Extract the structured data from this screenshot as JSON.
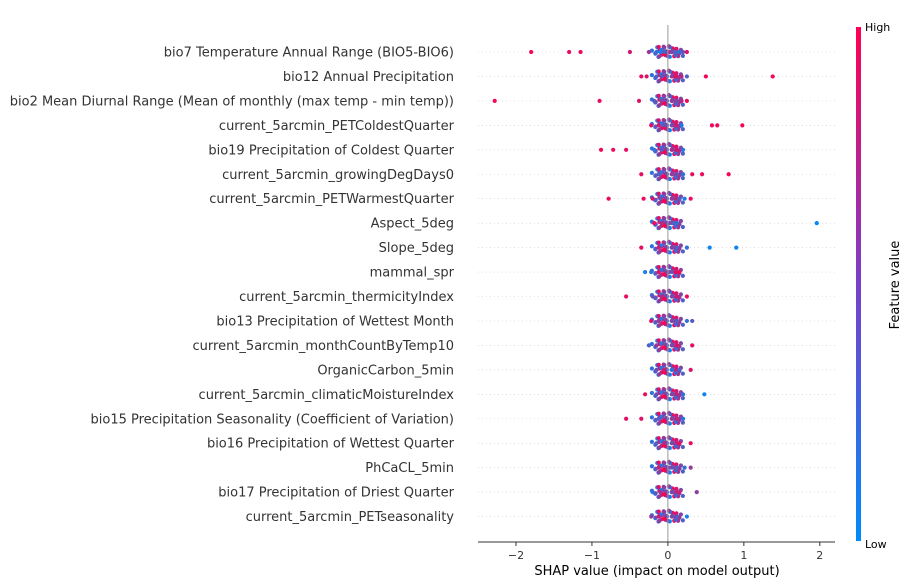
{
  "chart_data": {
    "type": "scatter",
    "subtype": "shap-beeswarm",
    "xlabel": "SHAP value (impact on model output)",
    "xlim": [
      -2.5,
      2.2
    ],
    "xticks": [
      -2,
      -1,
      0,
      1,
      2
    ],
    "xtick_labels": [
      "−2",
      "−1",
      "0",
      "1",
      "2"
    ],
    "zero_line": true,
    "colorbar": {
      "title": "Feature value",
      "high_label": "High",
      "low_label": "Low",
      "high_color": "#ff0052",
      "low_color": "#008bfb"
    },
    "features": [
      {
        "name": "bio7 Temperature Annual Range (BIO5-BIO6)",
        "points": [
          [
            -1.8,
            0.95
          ],
          [
            -1.3,
            0.9
          ],
          [
            -1.15,
            0.92
          ],
          [
            -0.5,
            0.8
          ],
          [
            -0.25,
            0.6
          ],
          [
            -0.15,
            0.2
          ],
          [
            -0.1,
            0.1
          ],
          [
            -0.05,
            0.3
          ],
          [
            0.02,
            0.7
          ],
          [
            0.05,
            0.5
          ],
          [
            0.1,
            0.3
          ],
          [
            0.15,
            0.2
          ],
          [
            0.2,
            0.4
          ],
          [
            0.25,
            0.85
          ]
        ]
      },
      {
        "name": "bio12 Annual Precipitation",
        "points": [
          [
            -0.35,
            0.9
          ],
          [
            -0.28,
            0.85
          ],
          [
            -0.15,
            0.3
          ],
          [
            -0.08,
            0.4
          ],
          [
            0.05,
            0.6
          ],
          [
            0.1,
            0.9
          ],
          [
            0.18,
            0.7
          ],
          [
            0.25,
            0.3
          ],
          [
            0.5,
            0.95
          ],
          [
            1.38,
            0.95
          ]
        ]
      },
      {
        "name": "bio2 Mean Diurnal Range (Mean of monthly (max temp - min temp))",
        "points": [
          [
            -2.28,
            0.95
          ],
          [
            -0.9,
            0.9
          ],
          [
            -0.38,
            0.85
          ],
          [
            -0.18,
            0.35
          ],
          [
            -0.08,
            0.5
          ],
          [
            0.05,
            0.6
          ],
          [
            0.12,
            0.4
          ],
          [
            0.18,
            0.75
          ],
          [
            0.25,
            0.9
          ]
        ]
      },
      {
        "name": "current_5arcmin_PETColdestQuarter",
        "points": [
          [
            -0.22,
            0.9
          ],
          [
            -0.12,
            0.8
          ],
          [
            -0.05,
            0.4
          ],
          [
            0.05,
            0.5
          ],
          [
            0.1,
            0.8
          ],
          [
            0.18,
            0.1
          ],
          [
            0.58,
            0.95
          ],
          [
            0.65,
            0.95
          ],
          [
            0.98,
            0.95
          ]
        ]
      },
      {
        "name": "bio19 Precipitation of Coldest Quarter",
        "points": [
          [
            -0.88,
            0.95
          ],
          [
            -0.72,
            0.92
          ],
          [
            -0.55,
            0.9
          ],
          [
            -0.18,
            0.2
          ],
          [
            -0.08,
            0.35
          ],
          [
            0.05,
            0.7
          ],
          [
            0.12,
            0.85
          ],
          [
            0.2,
            0.15
          ]
        ]
      },
      {
        "name": "current_5arcmin_growingDegDays0",
        "points": [
          [
            -0.35,
            0.9
          ],
          [
            -0.12,
            0.3
          ],
          [
            0.05,
            0.6
          ],
          [
            0.12,
            0.4
          ],
          [
            0.2,
            0.2
          ],
          [
            0.32,
            0.9
          ],
          [
            0.45,
            0.92
          ],
          [
            0.8,
            0.95
          ]
        ]
      },
      {
        "name": "current_5arcmin_PETWarmestQuarter",
        "points": [
          [
            -0.78,
            0.95
          ],
          [
            -0.32,
            0.9
          ],
          [
            -0.2,
            0.85
          ],
          [
            -0.1,
            0.4
          ],
          [
            0.05,
            0.6
          ],
          [
            0.15,
            0.3
          ],
          [
            0.22,
            0.1
          ],
          [
            0.3,
            0.9
          ]
        ]
      },
      {
        "name": "Aspect_5deg",
        "points": [
          [
            -0.18,
            0.9
          ],
          [
            -0.08,
            0.7
          ],
          [
            0.02,
            0.5
          ],
          [
            0.08,
            0.3
          ],
          [
            0.12,
            0.2
          ],
          [
            1.96,
            0.02
          ]
        ]
      },
      {
        "name": "Slope_5deg",
        "points": [
          [
            -0.35,
            0.9
          ],
          [
            -0.12,
            0.8
          ],
          [
            0.05,
            0.5
          ],
          [
            0.12,
            0.3
          ],
          [
            0.25,
            0.2
          ],
          [
            0.55,
            0.05
          ],
          [
            0.9,
            0.05
          ]
        ]
      },
      {
        "name": "mammal_spr",
        "points": [
          [
            -0.3,
            0.1
          ],
          [
            -0.22,
            0.2
          ],
          [
            -0.12,
            0.85
          ],
          [
            0.02,
            0.5
          ],
          [
            0.1,
            0.9
          ],
          [
            0.15,
            0.95
          ]
        ]
      },
      {
        "name": "current_5arcmin_thermicityIndex",
        "points": [
          [
            -0.55,
            0.9
          ],
          [
            -0.2,
            0.4
          ],
          [
            -0.08,
            0.7
          ],
          [
            0.05,
            0.5
          ],
          [
            0.12,
            0.8
          ],
          [
            0.25,
            0.9
          ]
        ]
      },
      {
        "name": "bio13 Precipitation of Wettest Month",
        "points": [
          [
            -0.22,
            0.9
          ],
          [
            -0.12,
            0.6
          ],
          [
            0.05,
            0.5
          ],
          [
            0.12,
            0.3
          ],
          [
            0.25,
            0.2
          ],
          [
            0.32,
            0.35
          ]
        ]
      },
      {
        "name": "current_5arcmin_monthCountByTemp10",
        "points": [
          [
            -0.25,
            0.3
          ],
          [
            -0.15,
            0.6
          ],
          [
            0.05,
            0.5
          ],
          [
            0.12,
            0.85
          ],
          [
            0.32,
            0.9
          ]
        ]
      },
      {
        "name": "OrganicCarbon_5min",
        "points": [
          [
            -0.15,
            0.4
          ],
          [
            -0.05,
            0.8
          ],
          [
            0.05,
            0.2
          ],
          [
            0.15,
            0.3
          ],
          [
            0.3,
            0.85
          ]
        ]
      },
      {
        "name": "current_5arcmin_climaticMoistureIndex",
        "points": [
          [
            -0.3,
            0.9
          ],
          [
            -0.15,
            0.4
          ],
          [
            0.05,
            0.5
          ],
          [
            0.2,
            0.2
          ],
          [
            0.48,
            0.05
          ]
        ]
      },
      {
        "name": "bio15 Precipitation Seasonality (Coefficient of Variation)",
        "points": [
          [
            -0.55,
            0.9
          ],
          [
            -0.35,
            0.88
          ],
          [
            -0.12,
            0.3
          ],
          [
            0.05,
            0.6
          ],
          [
            0.12,
            0.7
          ],
          [
            0.2,
            0.15
          ]
        ]
      },
      {
        "name": "bio16 Precipitation of Wettest Quarter",
        "points": [
          [
            -0.15,
            0.3
          ],
          [
            -0.05,
            0.7
          ],
          [
            0.05,
            0.5
          ],
          [
            0.15,
            0.9
          ],
          [
            0.3,
            0.9
          ]
        ]
      },
      {
        "name": "PhCaCL_5min",
        "points": [
          [
            -0.12,
            0.8
          ],
          [
            0.02,
            0.5
          ],
          [
            0.12,
            0.3
          ],
          [
            0.22,
            0.2
          ],
          [
            0.3,
            0.6
          ]
        ]
      },
      {
        "name": "bio17 Precipitation of Driest Quarter",
        "points": [
          [
            -0.2,
            0.2
          ],
          [
            -0.1,
            0.6
          ],
          [
            0.05,
            0.5
          ],
          [
            0.15,
            0.8
          ],
          [
            0.38,
            0.55
          ]
        ]
      },
      {
        "name": "current_5arcmin_PETseasonality",
        "points": [
          [
            -0.22,
            0.6
          ],
          [
            -0.12,
            0.8
          ],
          [
            0.05,
            0.5
          ],
          [
            0.12,
            0.3
          ],
          [
            0.25,
            0.1
          ]
        ]
      }
    ]
  }
}
